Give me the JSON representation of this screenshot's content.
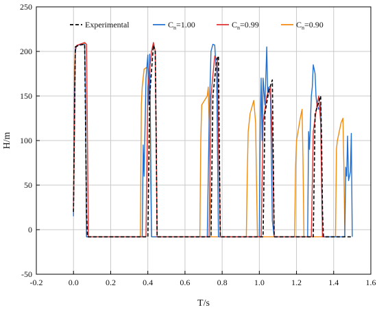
{
  "chart_data": {
    "type": "line",
    "xlabel": "T/s",
    "ylabel": "H/m",
    "xlim": [
      -0.2,
      1.6
    ],
    "ylim": [
      -50,
      250
    ],
    "xticks": [
      "-0.2",
      "0.0",
      "0.2",
      "0.4",
      "0.6",
      "0.8",
      "1.0",
      "1.2",
      "1.4",
      "1.6"
    ],
    "yticks": [
      "-50",
      "0",
      "50",
      "100",
      "150",
      "200",
      "250"
    ],
    "grid": true,
    "legend_position": "top-right",
    "series": [
      {
        "name": "Experimental",
        "name_main": "Experimental",
        "name_sub": "",
        "name_tail": "",
        "color": "#000000",
        "dash": true,
        "x": [
          0.0,
          0.01,
          0.03,
          0.06,
          0.065,
          0.07,
          0.075,
          0.4,
          0.41,
          0.43,
          0.44,
          0.445,
          0.45,
          0.46,
          0.74,
          0.75,
          0.77,
          0.78,
          0.785,
          0.79,
          1.02,
          1.03,
          1.05,
          1.07,
          1.075,
          1.08,
          1.29,
          1.3,
          1.33,
          1.335,
          1.34,
          1.345,
          1.5
        ],
        "y": [
          20,
          205,
          207,
          208,
          120,
          20,
          -8,
          -8,
          150,
          207,
          200,
          100,
          -8,
          -8,
          -8,
          150,
          190,
          195,
          90,
          -8,
          -8,
          130,
          155,
          168,
          80,
          -8,
          -8,
          130,
          150,
          100,
          20,
          -8,
          -8
        ]
      },
      {
        "name": "Cn=1.00",
        "name_main": "C",
        "name_sub": "n",
        "name_tail": "=1.00",
        "color": "#1F6FD0",
        "dash": false,
        "x": [
          0.0,
          0.005,
          0.01,
          0.015,
          0.02,
          0.06,
          0.065,
          0.07,
          0.37,
          0.375,
          0.38,
          0.39,
          0.4,
          0.405,
          0.41,
          0.42,
          0.43,
          0.44,
          0.45,
          0.72,
          0.73,
          0.74,
          0.75,
          0.76,
          0.765,
          0.77,
          0.78,
          1.0,
          1.005,
          1.01,
          1.015,
          1.02,
          1.03,
          1.04,
          1.045,
          1.05,
          1.06,
          1.07,
          1.08,
          1.09,
          1.26,
          1.265,
          1.27,
          1.28,
          1.285,
          1.29,
          1.3,
          1.305,
          1.31,
          1.32,
          1.33,
          1.34,
          1.46,
          1.465,
          1.47,
          1.475,
          1.48,
          1.49,
          1.495,
          1.5
        ],
        "y": [
          15,
          150,
          200,
          205,
          207,
          208,
          150,
          -8,
          -8,
          95,
          60,
          170,
          196,
          140,
          197,
          -8,
          -8,
          -8,
          -8,
          -8,
          120,
          200,
          208,
          207,
          190,
          180,
          -8,
          -8,
          120,
          170,
          100,
          170,
          140,
          205,
          150,
          160,
          150,
          10,
          -8,
          -8,
          -8,
          110,
          90,
          150,
          160,
          185,
          175,
          150,
          140,
          135,
          140,
          -8,
          -8,
          70,
          60,
          105,
          55,
          65,
          108,
          -8
        ]
      },
      {
        "name": "Cn=0.99",
        "name_main": "C",
        "name_sub": "n",
        "name_tail": "=0.99",
        "color": "#E03030",
        "dash": false,
        "x": [
          0.0,
          0.01,
          0.02,
          0.06,
          0.07,
          0.075,
          0.08,
          0.39,
          0.4,
          0.42,
          0.43,
          0.44,
          0.445,
          0.45,
          0.73,
          0.74,
          0.76,
          0.775,
          0.78,
          0.79,
          1.01,
          1.02,
          1.04,
          1.06,
          1.07,
          1.08,
          1.28,
          1.29,
          1.31,
          1.32,
          1.33,
          1.34,
          1.35
        ],
        "y": [
          20,
          205,
          207,
          210,
          208,
          100,
          -8,
          -8,
          160,
          200,
          210,
          200,
          100,
          -8,
          -8,
          150,
          195,
          190,
          100,
          -8,
          -8,
          120,
          150,
          160,
          100,
          -8,
          -8,
          110,
          140,
          150,
          120,
          -8,
          -8
        ]
      },
      {
        "name": "Cn=0.90",
        "name_main": "C",
        "name_sub": "n",
        "name_tail": "=0.90",
        "color": "#F08A10",
        "dash": false,
        "x": [
          0.0,
          0.005,
          0.01,
          0.02,
          0.05,
          0.06,
          0.065,
          0.07,
          0.36,
          0.365,
          0.37,
          0.38,
          0.4,
          0.41,
          0.415,
          0.42,
          0.68,
          0.685,
          0.69,
          0.72,
          0.725,
          0.73,
          0.74,
          0.93,
          0.935,
          0.94,
          0.95,
          0.97,
          0.98,
          0.985,
          0.99,
          1.19,
          1.195,
          1.2,
          1.22,
          1.23,
          1.235,
          1.24,
          1.41,
          1.415,
          1.42,
          1.44,
          1.45,
          1.455,
          1.46
        ],
        "y": [
          20,
          180,
          205,
          207,
          208,
          209,
          150,
          -8,
          -8,
          140,
          160,
          180,
          183,
          170,
          60,
          -8,
          -8,
          100,
          140,
          150,
          160,
          120,
          -8,
          -8,
          60,
          110,
          130,
          145,
          120,
          50,
          -8,
          -8,
          70,
          100,
          125,
          135,
          80,
          -8,
          -8,
          90,
          100,
          120,
          125,
          70,
          -8
        ]
      }
    ]
  }
}
